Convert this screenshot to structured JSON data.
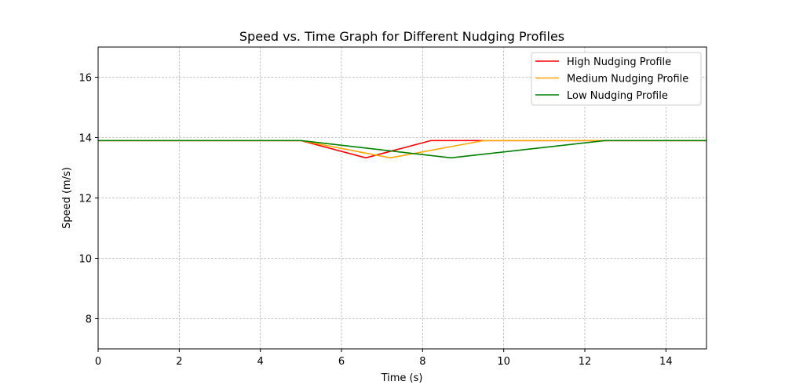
{
  "chart_data": {
    "type": "line",
    "title": "Speed vs. Time Graph for Different Nudging Profiles",
    "xlabel": "Time (s)",
    "ylabel": "Speed (m/s)",
    "xlim": [
      0,
      15
    ],
    "ylim": [
      7,
      17
    ],
    "xticks": [
      0,
      2,
      4,
      6,
      8,
      10,
      12,
      14
    ],
    "yticks": [
      8,
      10,
      12,
      14,
      16
    ],
    "grid": true,
    "legend_position": "top-right",
    "series": [
      {
        "name": "High Nudging Profile",
        "color": "#ff0000",
        "x": [
          0,
          5,
          6.6,
          8.2,
          15
        ],
        "y": [
          13.9,
          13.9,
          13.33,
          13.9,
          13.9
        ]
      },
      {
        "name": "Medium Nudging Profile",
        "color": "#ffa500",
        "x": [
          0,
          5,
          7.2,
          9.5,
          15
        ],
        "y": [
          13.9,
          13.9,
          13.33,
          13.9,
          13.9
        ]
      },
      {
        "name": "Low Nudging Profile",
        "color": "#008000",
        "x": [
          0,
          5,
          8.7,
          12.5,
          15
        ],
        "y": [
          13.9,
          13.9,
          13.33,
          13.9,
          13.9
        ]
      }
    ]
  }
}
